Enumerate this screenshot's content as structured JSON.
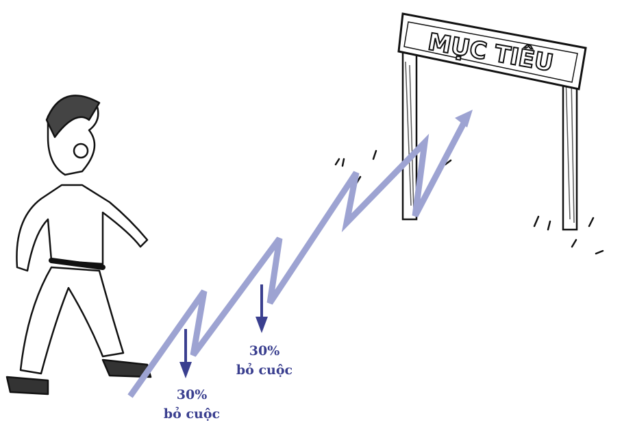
{
  "sign": {
    "label": "MỤC TIÊU"
  },
  "annotations": [
    {
      "percent": "30%",
      "label": "bỏ cuộc"
    },
    {
      "percent": "30%",
      "label": "bỏ cuộc"
    }
  ]
}
